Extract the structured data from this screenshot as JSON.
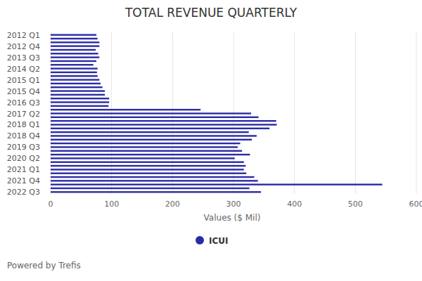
{
  "chart_data": {
    "type": "bar",
    "orientation": "horizontal",
    "title": "TOTAL REVENUE QUARTERLY",
    "x_label": "Values ($ Mil)",
    "footer": "Powered by Trefis",
    "categories": [
      "2012 Q1",
      null,
      null,
      "2012 Q4",
      null,
      null,
      "2013 Q3",
      null,
      null,
      "2014 Q2",
      null,
      null,
      "2015 Q1",
      null,
      null,
      "2015 Q4",
      null,
      null,
      "2016 Q3",
      null,
      null,
      "2017 Q2",
      null,
      null,
      "2018 Q1",
      null,
      null,
      "2018 Q4",
      null,
      null,
      "2019 Q3",
      null,
      null,
      "2020 Q2",
      null,
      null,
      "2021 Q1",
      null,
      null,
      "2021 Q4",
      null,
      null,
      "2022 Q3"
    ],
    "series": [
      {
        "name": "ICUI",
        "color": "#2b2ba6",
        "values": [
          75,
          77,
          80,
          80,
          74,
          78,
          80,
          75,
          70,
          77,
          76,
          77,
          80,
          82,
          85,
          89,
          89,
          96,
          96,
          95,
          246,
          329,
          341,
          370,
          371,
          359,
          325,
          338,
          330,
          311,
          307,
          314,
          327,
          302,
          317,
          320,
          317,
          321,
          334,
          340,
          544,
          326,
          345
        ]
      }
    ],
    "xlim": [
      0,
      600
    ],
    "xticks": [
      0,
      100,
      200,
      300,
      400,
      500,
      600
    ],
    "grid": true,
    "legend": "bottom"
  }
}
